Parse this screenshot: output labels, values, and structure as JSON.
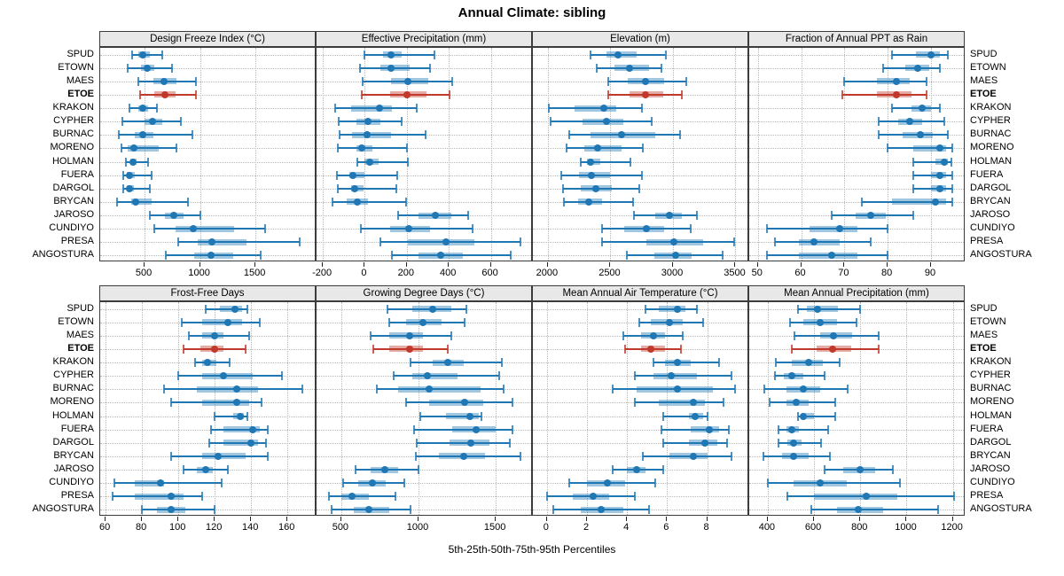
{
  "chart_data": {
    "type": "scatter",
    "subtype": "percentile-interval-trellis",
    "title": "Annual Climate: sibling",
    "xlabel": "5th-25th-50th-75th-95th Percentiles",
    "percentile_labels": [
      "5th",
      "25th",
      "50th",
      "75th",
      "95th"
    ],
    "legend_position": "none",
    "grid": "dotted",
    "highlight_site": "ETOE",
    "colors": {
      "normal_series": "#1F77B4",
      "highlight_series": "#C0392B",
      "panel_header_bg": "#E8E8E8",
      "panel_border": "#3C3C3C",
      "grid_line": "#B8B8B8"
    },
    "sites": [
      "SPUD",
      "ETOWN",
      "MAES",
      "ETOE",
      "KRAKON",
      "CYPHER",
      "BURNAC",
      "MORENO",
      "HOLMAN",
      "FUERA",
      "DARGOL",
      "BRYCAN",
      "JAROSO",
      "CUNDIYO",
      "PRESA",
      "ANGOSTURA"
    ],
    "panels": [
      {
        "title": "Design Freeze Index (°C)",
        "xlim": [
          100,
          2050
        ],
        "ticks": [
          500,
          1000,
          1500
        ],
        "data": [
          [
            390,
            445,
            485,
            545,
            660
          ],
          [
            345,
            470,
            520,
            590,
            745
          ],
          [
            445,
            580,
            675,
            790,
            960
          ],
          [
            460,
            590,
            680,
            780,
            965
          ],
          [
            360,
            440,
            480,
            530,
            610
          ],
          [
            300,
            500,
            575,
            660,
            830
          ],
          [
            270,
            410,
            480,
            580,
            935
          ],
          [
            290,
            350,
            400,
            630,
            790
          ],
          [
            330,
            370,
            395,
            430,
            530
          ],
          [
            310,
            340,
            365,
            410,
            560
          ],
          [
            305,
            340,
            365,
            400,
            550
          ],
          [
            250,
            380,
            420,
            560,
            890
          ],
          [
            550,
            680,
            760,
            850,
            1000
          ],
          [
            590,
            780,
            940,
            1310,
            1590
          ],
          [
            800,
            980,
            1110,
            1420,
            1900
          ],
          [
            690,
            950,
            1100,
            1300,
            1550
          ]
        ]
      },
      {
        "title": "Effective Precipitation (mm)",
        "xlim": [
          -230,
          800
        ],
        "ticks": [
          -200,
          0,
          200,
          400,
          600
        ],
        "data": [
          [
            0,
            85,
            125,
            175,
            330
          ],
          [
            -25,
            75,
            125,
            215,
            310
          ],
          [
            -10,
            125,
            205,
            300,
            415
          ],
          [
            -15,
            120,
            200,
            295,
            405
          ],
          [
            -140,
            -65,
            70,
            130,
            245
          ],
          [
            -125,
            -40,
            15,
            75,
            175
          ],
          [
            -120,
            -60,
            10,
            125,
            290
          ],
          [
            -130,
            -40,
            -15,
            35,
            200
          ],
          [
            -35,
            0,
            25,
            65,
            205
          ],
          [
            -135,
            -75,
            -55,
            0,
            155
          ],
          [
            -130,
            -65,
            -50,
            -5,
            150
          ],
          [
            -155,
            -85,
            -35,
            15,
            195
          ],
          [
            160,
            255,
            335,
            410,
            490
          ],
          [
            -20,
            120,
            210,
            310,
            515
          ],
          [
            75,
            205,
            385,
            520,
            740
          ],
          [
            130,
            255,
            360,
            465,
            695
          ]
        ]
      },
      {
        "title": "Elevation (m)",
        "xlim": [
          1880,
          3610
        ],
        "ticks": [
          2000,
          2500,
          3000,
          3500
        ],
        "data": [
          [
            2340,
            2470,
            2560,
            2710,
            2940
          ],
          [
            2390,
            2530,
            2650,
            2810,
            2910
          ],
          [
            2480,
            2640,
            2780,
            2930,
            3110
          ],
          [
            2480,
            2650,
            2780,
            2920,
            3070
          ],
          [
            2010,
            2210,
            2450,
            2550,
            2750
          ],
          [
            2020,
            2280,
            2470,
            2600,
            2830
          ],
          [
            2170,
            2340,
            2590,
            2860,
            3060
          ],
          [
            2150,
            2290,
            2400,
            2590,
            2760
          ],
          [
            2260,
            2310,
            2340,
            2420,
            2660
          ],
          [
            2110,
            2250,
            2350,
            2500,
            2750
          ],
          [
            2120,
            2260,
            2380,
            2510,
            2730
          ],
          [
            2130,
            2240,
            2330,
            2430,
            2680
          ],
          [
            2690,
            2860,
            2970,
            3070,
            3190
          ],
          [
            2430,
            2610,
            2790,
            2930,
            3140
          ],
          [
            2430,
            2790,
            3010,
            3240,
            3490
          ],
          [
            2630,
            2850,
            3020,
            3150,
            3400
          ]
        ]
      },
      {
        "title": "Fraction of Annual PPT as Rain",
        "xlim": [
          48,
          98
        ],
        "ticks": [
          50,
          60,
          70,
          80,
          90
        ],
        "data": [
          [
            81,
            86.5,
            90,
            92,
            94
          ],
          [
            79,
            84,
            87,
            89.5,
            92
          ],
          [
            70,
            77.5,
            82,
            85,
            89
          ],
          [
            69.5,
            77.5,
            82,
            85.5,
            89
          ],
          [
            81,
            85.5,
            88,
            90,
            92
          ],
          [
            78,
            82.5,
            85,
            88,
            93
          ],
          [
            78,
            83.5,
            87.5,
            90.5,
            94
          ],
          [
            80,
            86,
            92,
            93.5,
            95
          ],
          [
            86,
            91,
            93,
            94,
            94.8
          ],
          [
            86,
            90,
            92,
            93.5,
            95
          ],
          [
            86,
            90,
            92,
            93.5,
            95
          ],
          [
            74,
            81,
            91,
            93.5,
            95
          ],
          [
            67,
            72.5,
            76,
            79.5,
            86
          ],
          [
            52,
            62,
            69,
            73,
            80
          ],
          [
            54,
            59.5,
            63,
            69,
            76
          ],
          [
            52,
            59.5,
            67,
            73,
            80
          ]
        ]
      },
      {
        "title": "Frost-Free Days",
        "xlim": [
          57,
          176
        ],
        "ticks": [
          60,
          80,
          100,
          120,
          140,
          160
        ],
        "data": [
          [
            115,
            123,
            131,
            135,
            138
          ],
          [
            102,
            113,
            127,
            135,
            145
          ],
          [
            106,
            113,
            120,
            125,
            139
          ],
          [
            103,
            112,
            120,
            125,
            137
          ],
          [
            109,
            113,
            116,
            121,
            128
          ],
          [
            100,
            113,
            125,
            141,
            157
          ],
          [
            92,
            110,
            132,
            144,
            168
          ],
          [
            96,
            113,
            132,
            139,
            146
          ],
          [
            120,
            130,
            134,
            136,
            138
          ],
          [
            118,
            125,
            141,
            145,
            149
          ],
          [
            117,
            125,
            140,
            144,
            148
          ],
          [
            96,
            113,
            122,
            137,
            149
          ],
          [
            103,
            110,
            115,
            119,
            127
          ],
          [
            65,
            76,
            90,
            92,
            124
          ],
          [
            64,
            76,
            96,
            103,
            113
          ],
          [
            80,
            88,
            96,
            104,
            120
          ]
        ]
      },
      {
        "title": "Growing Degree Days (°C)",
        "xlim": [
          340,
          1740
        ],
        "ticks": [
          500,
          1000,
          1500
        ],
        "data": [
          [
            800,
            960,
            1090,
            1210,
            1310
          ],
          [
            810,
            920,
            1030,
            1150,
            1300
          ],
          [
            690,
            810,
            940,
            1030,
            1210
          ],
          [
            710,
            810,
            940,
            1030,
            1190
          ],
          [
            950,
            1090,
            1190,
            1290,
            1540
          ],
          [
            840,
            960,
            1060,
            1250,
            1520
          ],
          [
            730,
            870,
            1070,
            1400,
            1550
          ],
          [
            920,
            1070,
            1300,
            1420,
            1610
          ],
          [
            1010,
            1180,
            1330,
            1390,
            1410
          ],
          [
            970,
            1220,
            1370,
            1500,
            1610
          ],
          [
            990,
            1200,
            1340,
            1460,
            1590
          ],
          [
            980,
            1130,
            1290,
            1430,
            1660
          ],
          [
            590,
            690,
            780,
            870,
            1000
          ],
          [
            510,
            610,
            700,
            790,
            910
          ],
          [
            420,
            500,
            570,
            680,
            850
          ],
          [
            440,
            580,
            680,
            810,
            950
          ]
        ]
      },
      {
        "title": "Mean Annual Air Temperature (°C)",
        "xlim": [
          -0.7,
          10.1
        ],
        "ticks": [
          0,
          2,
          4,
          6,
          8
        ],
        "data": [
          [
            4.9,
            5.6,
            6.5,
            6.9,
            7.5
          ],
          [
            4.6,
            5.2,
            6.1,
            6.8,
            7.8
          ],
          [
            3.8,
            4.7,
            5.3,
            5.9,
            6.8
          ],
          [
            3.9,
            4.7,
            5.2,
            5.9,
            6.7
          ],
          [
            5.3,
            5.9,
            6.5,
            7.2,
            8.6
          ],
          [
            4.4,
            5.3,
            6.2,
            7.5,
            9.2
          ],
          [
            3.3,
            4.5,
            6.5,
            8.3,
            9.4
          ],
          [
            4.4,
            5.6,
            7.3,
            7.9,
            8.8
          ],
          [
            5.8,
            7.1,
            7.4,
            7.8,
            8.0
          ],
          [
            5.7,
            7.2,
            8.1,
            8.6,
            9.1
          ],
          [
            5.8,
            7.1,
            7.9,
            8.5,
            9.0
          ],
          [
            4.8,
            6.1,
            7.3,
            8.0,
            9.2
          ],
          [
            3.3,
            4.0,
            4.5,
            4.9,
            5.8
          ],
          [
            1.1,
            2.0,
            3.0,
            3.9,
            5.4
          ],
          [
            0.0,
            1.3,
            2.3,
            3.1,
            4.4
          ],
          [
            0.3,
            1.7,
            2.7,
            3.8,
            5.1
          ]
        ]
      },
      {
        "title": "Mean Annual Precipitation (mm)",
        "xlim": [
          320,
          1255
        ],
        "ticks": [
          400,
          600,
          800,
          1000,
          1200
        ],
        "data": [
          [
            530,
            570,
            615,
            705,
            800
          ],
          [
            495,
            555,
            625,
            700,
            785
          ],
          [
            515,
            625,
            685,
            765,
            880
          ],
          [
            505,
            610,
            680,
            760,
            880
          ],
          [
            435,
            505,
            575,
            640,
            710
          ],
          [
            430,
            470,
            505,
            555,
            645
          ],
          [
            385,
            480,
            555,
            625,
            745
          ],
          [
            410,
            480,
            525,
            575,
            690
          ],
          [
            530,
            545,
            555,
            600,
            690
          ],
          [
            445,
            480,
            505,
            535,
            660
          ],
          [
            445,
            485,
            510,
            545,
            630
          ],
          [
            380,
            460,
            510,
            575,
            670
          ],
          [
            645,
            725,
            800,
            865,
            940
          ],
          [
            400,
            510,
            625,
            740,
            970
          ],
          [
            485,
            600,
            825,
            960,
            1205
          ],
          [
            590,
            700,
            790,
            900,
            1135
          ]
        ]
      }
    ]
  }
}
